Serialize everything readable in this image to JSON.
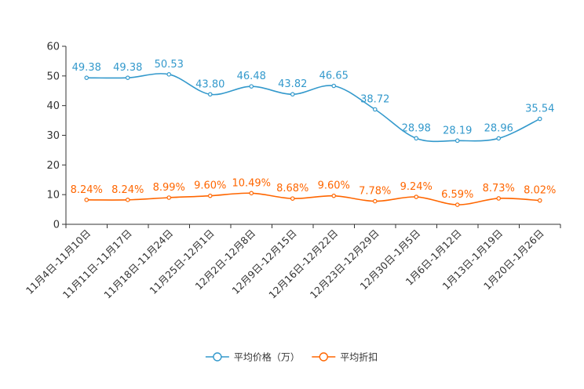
{
  "chart_data": {
    "type": "line",
    "title": "",
    "xlabel": "",
    "ylabel": "",
    "ylim": [
      0,
      60
    ],
    "yticks": [
      0,
      10,
      20,
      30,
      40,
      50,
      60
    ],
    "grid": false,
    "legend_position": "bottom-center",
    "categories": [
      "11月4日-11月10日",
      "11月11日-11月17日",
      "11月18日-11月24日",
      "11月25日-12月1日",
      "12月2日-12月8日",
      "12月9日-12月15日",
      "12月16日-12月22日",
      "12月23日-12月29日",
      "12月30日-1月5日",
      "1月6日-1月12日",
      "1月13日-1月19日",
      "1月20日-1月26日"
    ],
    "series": [
      {
        "name": "平均价格（万）",
        "color": "#3399cc",
        "values": [
          49.38,
          49.38,
          50.53,
          43.8,
          46.48,
          43.82,
          46.65,
          38.72,
          28.98,
          28.19,
          28.96,
          35.54
        ],
        "labels": [
          "49.38",
          "49.38",
          "50.53",
          "43.80",
          "46.48",
          "43.82",
          "46.65",
          "38.72",
          "28.98",
          "28.19",
          "28.96",
          "35.54"
        ]
      },
      {
        "name": "平均折扣",
        "color": "#ff6600",
        "values": [
          8.24,
          8.24,
          8.99,
          9.6,
          10.49,
          8.68,
          9.6,
          7.78,
          9.24,
          6.59,
          8.73,
          8.02
        ],
        "labels": [
          "8.24%",
          "8.24%",
          "8.99%",
          "9.60%",
          "10.49%",
          "8.68%",
          "9.60%",
          "7.78%",
          "9.24%",
          "6.59%",
          "8.73%",
          "8.02%"
        ]
      }
    ]
  }
}
